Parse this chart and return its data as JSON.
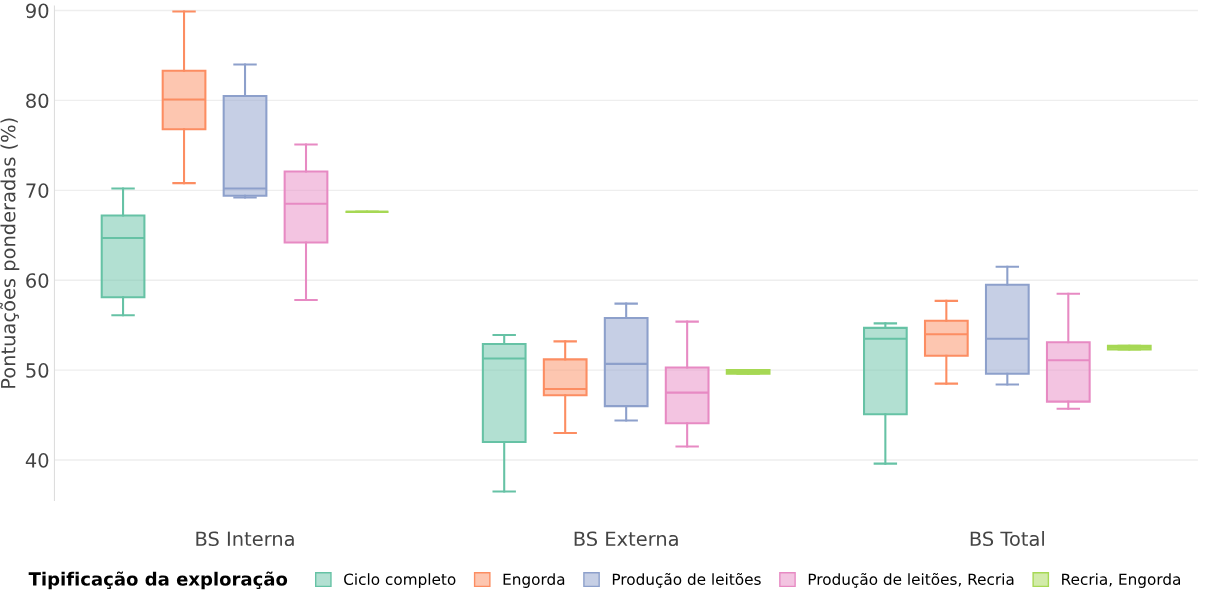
{
  "chart_data": {
    "type": "box",
    "ylabel": "Pontuações ponderadas (%)",
    "legend_title": "Tipificação da exploração",
    "legend": "bottom",
    "grid": "y",
    "categories": [
      "BS Interna",
      "BS Externa",
      "BS Total"
    ],
    "ylim": [
      35.5,
      90.5
    ],
    "yticks": [
      40,
      50,
      60,
      70,
      80,
      90
    ],
    "series": [
      {
        "name": "Ciclo completo",
        "color": "#66c2a5",
        "boxes": [
          {
            "low": 56.1,
            "q1": 58.1,
            "median": 64.7,
            "q3": 67.2,
            "high": 70.2
          },
          {
            "low": 36.5,
            "q1": 42.0,
            "median": 51.3,
            "q3": 52.9,
            "high": 53.9
          },
          {
            "low": 39.6,
            "q1": 45.1,
            "median": 53.5,
            "q3": 54.7,
            "high": 55.2
          }
        ]
      },
      {
        "name": "Engorda",
        "color": "#fc8d62",
        "boxes": [
          {
            "low": 70.8,
            "q1": 76.8,
            "median": 80.1,
            "q3": 83.3,
            "high": 89.9
          },
          {
            "low": 43.0,
            "q1": 47.2,
            "median": 47.9,
            "q3": 51.2,
            "high": 53.2
          },
          {
            "low": 48.5,
            "q1": 51.6,
            "median": 54.0,
            "q3": 55.5,
            "high": 57.7
          }
        ]
      },
      {
        "name": "Produção de leitões",
        "color": "#8da0cb",
        "boxes": [
          {
            "low": 69.2,
            "q1": 69.4,
            "median": 70.2,
            "q3": 80.5,
            "high": 84.0
          },
          {
            "low": 44.4,
            "q1": 46.0,
            "median": 50.7,
            "q3": 55.8,
            "high": 57.4
          },
          {
            "low": 48.4,
            "q1": 49.6,
            "median": 53.5,
            "q3": 59.5,
            "high": 61.5
          }
        ]
      },
      {
        "name": "Produção de leitões, Recria",
        "color": "#e78ac3",
        "boxes": [
          {
            "low": 57.8,
            "q1": 64.2,
            "median": 68.5,
            "q3": 72.1,
            "high": 75.1
          },
          {
            "low": 41.5,
            "q1": 44.1,
            "median": 47.5,
            "q3": 50.3,
            "high": 55.4
          },
          {
            "low": 45.7,
            "q1": 46.5,
            "median": 51.1,
            "q3": 53.1,
            "high": 58.5
          }
        ]
      },
      {
        "name": "Recria, Engorda",
        "color": "#a6d854",
        "boxes": [
          {
            "low": 67.6,
            "q1": 67.6,
            "median": 67.6,
            "q3": 67.6,
            "high": 67.6
          },
          {
            "low": 49.6,
            "q1": 49.6,
            "median": 49.8,
            "q3": 50.0,
            "high": 50.0
          },
          {
            "low": 52.3,
            "q1": 52.3,
            "median": 52.5,
            "q3": 52.7,
            "high": 52.7
          }
        ]
      }
    ]
  }
}
